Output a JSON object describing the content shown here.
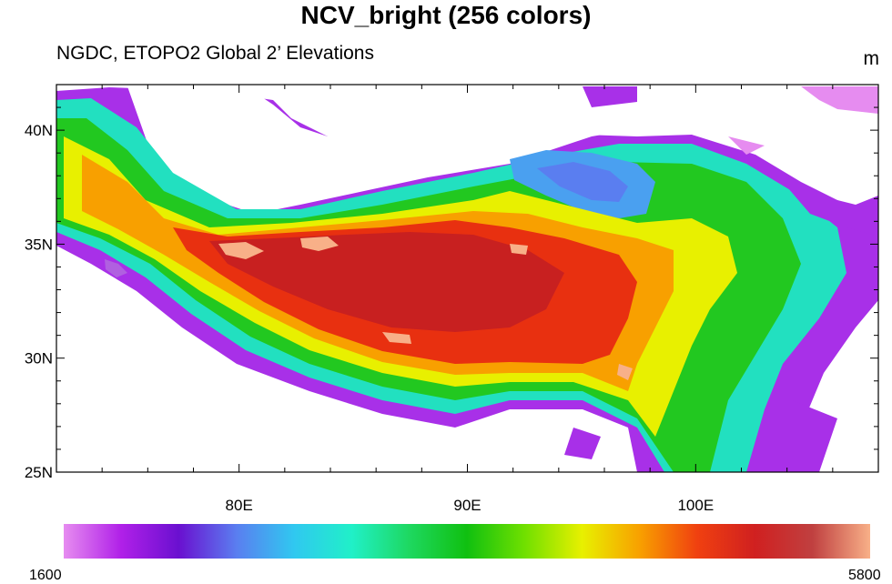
{
  "title": "NCV_bright (256 colors)",
  "subtitle": "NGDC, ETOPO2 Global 2’ Elevations",
  "units": "m",
  "map": {
    "lon_range": [
      72,
      108
    ],
    "lat_range": [
      25,
      42
    ],
    "lat_ticks": [
      {
        "value": 40,
        "label": "40N"
      },
      {
        "value": 35,
        "label": "35N"
      },
      {
        "value": 30,
        "label": "30N"
      },
      {
        "value": 25,
        "label": "25N"
      }
    ],
    "lon_ticks": [
      {
        "value": 80,
        "label": "80E"
      },
      {
        "value": 90,
        "label": "90E"
      },
      {
        "value": 100,
        "label": "100E"
      }
    ],
    "region": "Tibetan Plateau elevation",
    "missing_color": "#ffffff"
  },
  "colorbar": {
    "colormap": "NCV_bright",
    "min_label": "1600",
    "max_label": "5800",
    "colors": [
      "#e68cf0",
      "#b020e8",
      "#6a10d0",
      "#5a7ef0",
      "#30c8f0",
      "#20f0c8",
      "#1ed860",
      "#10c010",
      "#70e000",
      "#e8f000",
      "#f8a000",
      "#f04010",
      "#d02020",
      "#c04040",
      "#f8b088"
    ]
  }
}
